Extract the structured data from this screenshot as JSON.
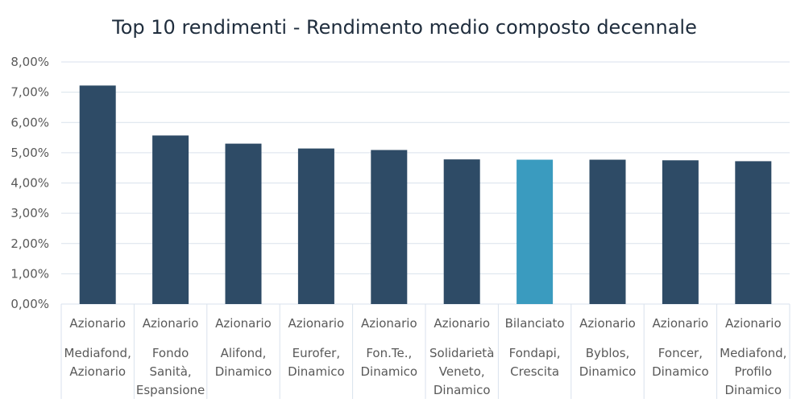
{
  "chart_data": {
    "type": "bar",
    "title": "Top 10 rendimenti - Rendimento medio composto decennale",
    "xlabel": "",
    "ylabel": "",
    "ylim": [
      0,
      8
    ],
    "y_tick_step": 1,
    "y_tick_labels": [
      "0,00%",
      "1,00%",
      "2,00%",
      "3,00%",
      "4,00%",
      "5,00%",
      "6,00%",
      "7,00%",
      "8,00%"
    ],
    "grid": true,
    "legend": "none",
    "groups": [
      "Azionario",
      "Azionario",
      "Azionario",
      "Azionario",
      "Azionario",
      "Azionario",
      "Bilanciato",
      "Azionario",
      "Azionario",
      "Azionario"
    ],
    "categories": [
      [
        "Mediafond,",
        "Azionario"
      ],
      [
        "Fondo",
        "Sanità,",
        "Espansione"
      ],
      [
        "Alifond,",
        "Dinamico"
      ],
      [
        "Eurofer,",
        "Dinamico"
      ],
      [
        "Fon.Te.,",
        "Dinamico"
      ],
      [
        "Solidarietà",
        "Veneto,",
        "Dinamico"
      ],
      [
        "Fondapi,",
        "Crescita"
      ],
      [
        "Byblos,",
        "Dinamico"
      ],
      [
        "Foncer,",
        "Dinamico"
      ],
      [
        "Mediafond,",
        "Profilo",
        "Dinamico"
      ]
    ],
    "values": [
      7.22,
      5.57,
      5.3,
      5.14,
      5.09,
      4.78,
      4.77,
      4.77,
      4.75,
      4.72
    ],
    "colors": {
      "default_bar": "#2e4b66",
      "highlight_bar": "#3a9bbf",
      "highlight_index": 6
    }
  }
}
